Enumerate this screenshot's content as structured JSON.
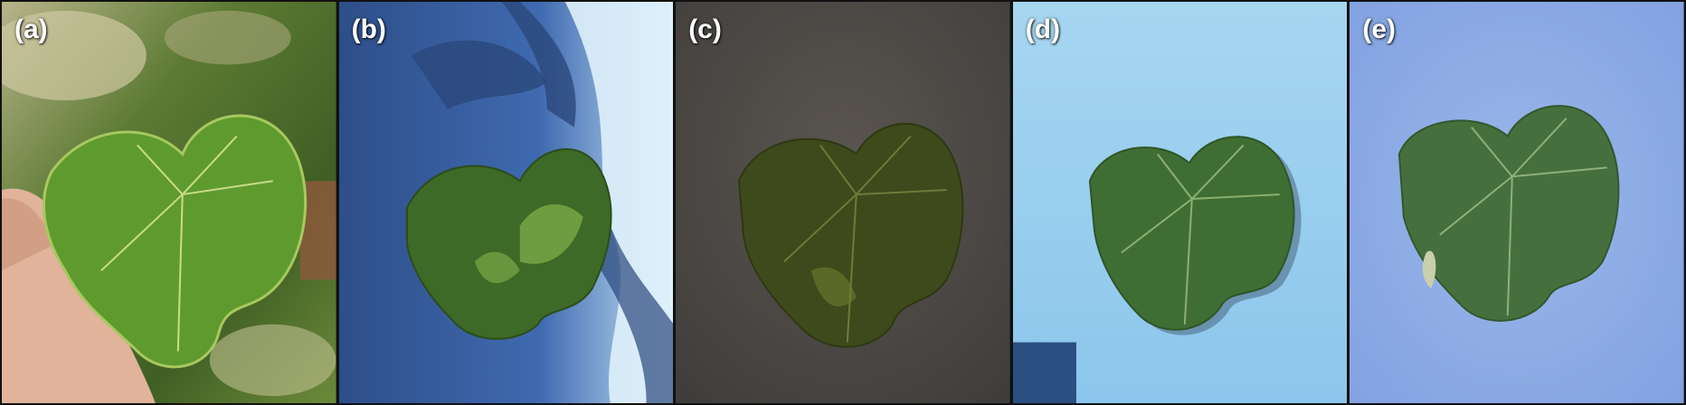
{
  "panels": [
    {
      "label": "(a)",
      "background": "grass-and-hand",
      "leaf_color": "#5f9a2e"
    },
    {
      "label": "(b)",
      "background": "blue-with-shadows",
      "leaf_color": "#3d6a26"
    },
    {
      "label": "(c)",
      "background": "dark-gray",
      "leaf_color": "#3e4a1c"
    },
    {
      "label": "(d)",
      "background": "light-blue",
      "leaf_color": "#3f6e34"
    },
    {
      "label": "(e)",
      "background": "periwinkle-blue",
      "leaf_color": "#45703e"
    }
  ]
}
